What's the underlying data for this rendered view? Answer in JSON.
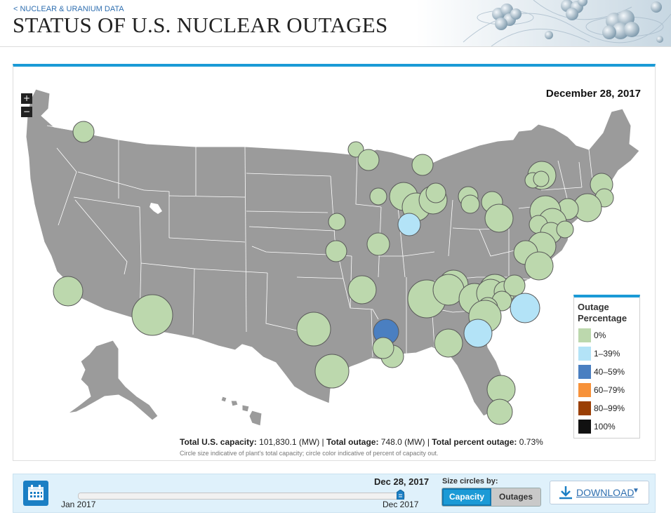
{
  "header": {
    "back_link": "< NUCLEAR & URANIUM DATA",
    "title": "STATUS OF U.S. NUCLEAR OUTAGES"
  },
  "map": {
    "date": "December 28, 2017",
    "zoom_in": "+",
    "zoom_out": "−",
    "land_color": "#9b9b9b",
    "border_color": "#ffffff"
  },
  "legend": {
    "title": "Outage Percentage",
    "items": [
      {
        "label": "0%",
        "color": "#bcd8ad"
      },
      {
        "label": "1–39%",
        "color": "#b3e3f7"
      },
      {
        "label": "40–59%",
        "color": "#4a7fc1"
      },
      {
        "label": "60–79%",
        "color": "#f7923a"
      },
      {
        "label": "80–99%",
        "color": "#9a3f05"
      },
      {
        "label": "100%",
        "color": "#111111"
      }
    ]
  },
  "totals": {
    "capacity_label": "Total U.S. capacity:",
    "capacity_value": "101,830.1 (MW)",
    "outage_label": "Total outage:",
    "outage_value": "748.0 (MW)",
    "percent_label": "Total percent outage:",
    "percent_value": "0.73%",
    "separator": "|",
    "note": "Circle size indicative of plant's total capacity; circle color indicative of percent of capacity out."
  },
  "timeline": {
    "current_date": "Dec 28, 2017",
    "start_label": "Jan 2017",
    "end_label": "Dec 2017",
    "position": 1.0
  },
  "size_by": {
    "label": "Size circles by:",
    "options": [
      "Capacity",
      "Outages"
    ],
    "selected": "Capacity"
  },
  "download": {
    "label": "DOWNLOAD"
  }
}
